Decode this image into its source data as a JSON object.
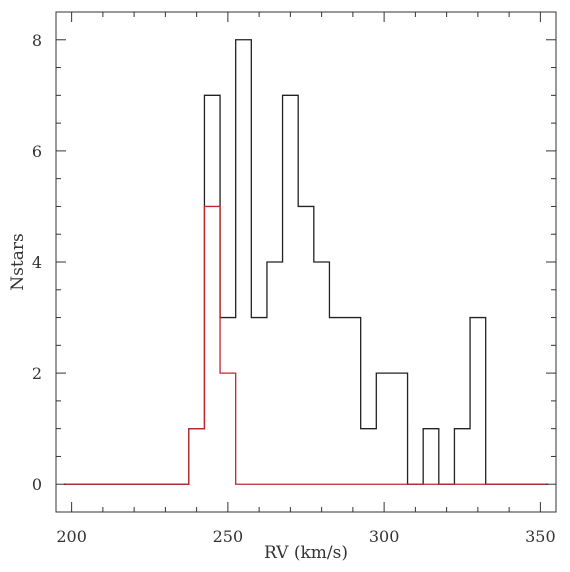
{
  "chart_data": {
    "type": "histogram",
    "xlabel": "RV (km/s)",
    "ylabel": "Nstars",
    "xlim": [
      195,
      355
    ],
    "ylim": [
      -0.5,
      8.5
    ],
    "x_ticks": [
      200,
      250,
      300,
      350
    ],
    "y_ticks": [
      0,
      2,
      4,
      6,
      8
    ],
    "bin_width": 5,
    "bin_starts": [
      197.5,
      202.5,
      207.5,
      212.5,
      217.5,
      222.5,
      227.5,
      232.5,
      237.5,
      242.5,
      247.5,
      252.5,
      257.5,
      262.5,
      267.5,
      272.5,
      277.5,
      282.5,
      287.5,
      292.5,
      297.5,
      302.5,
      307.5,
      312.5,
      317.5,
      322.5,
      327.5,
      332.5,
      337.5,
      342.5,
      347.5
    ],
    "grid": false,
    "series": [
      {
        "color": "#222222",
        "counts": [
          0,
          0,
          0,
          0,
          0,
          0,
          0,
          0,
          1,
          7,
          3,
          8,
          3,
          4,
          7,
          5,
          4,
          3,
          3,
          1,
          2,
          2,
          0,
          1,
          0,
          1,
          3,
          0,
          0,
          0,
          0
        ]
      },
      {
        "color": "#c0282d",
        "counts": [
          0,
          0,
          0,
          0,
          0,
          0,
          0,
          0,
          1,
          5,
          2,
          0,
          0,
          0,
          0,
          0,
          0,
          0,
          0,
          0,
          0,
          0,
          0,
          0,
          0,
          0,
          0,
          0,
          0,
          0,
          0
        ]
      }
    ]
  }
}
